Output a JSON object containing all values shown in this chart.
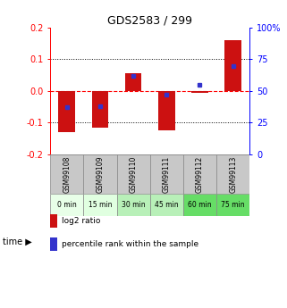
{
  "title": "GDS2583 / 299",
  "samples": [
    "GSM99108",
    "GSM99109",
    "GSM99110",
    "GSM99111",
    "GSM99112",
    "GSM99113"
  ],
  "time_labels": [
    "0 min",
    "15 min",
    "30 min",
    "45 min",
    "60 min",
    "75 min"
  ],
  "log2_ratio": [
    -0.13,
    -0.115,
    0.055,
    -0.125,
    -0.005,
    0.16
  ],
  "percentile_rank": [
    37,
    38,
    62,
    47,
    55,
    70
  ],
  "ylim_left": [
    -0.2,
    0.2
  ],
  "ylim_right": [
    0,
    100
  ],
  "bar_color": "#cc1111",
  "dot_color": "#3333cc",
  "sample_bg": "#c8c8c8",
  "time_bg_colors": [
    "#e8ffe8",
    "#e0ffe0",
    "#b8f0b8",
    "#b8f0b8",
    "#66dd66",
    "#66dd66"
  ],
  "left_yticks": [
    -0.2,
    -0.1,
    0.0,
    0.1,
    0.2
  ],
  "right_yticks": [
    0,
    25,
    50,
    75,
    100
  ],
  "bar_width": 0.5,
  "legend_items": [
    "log2 ratio",
    "percentile rank within the sample"
  ]
}
